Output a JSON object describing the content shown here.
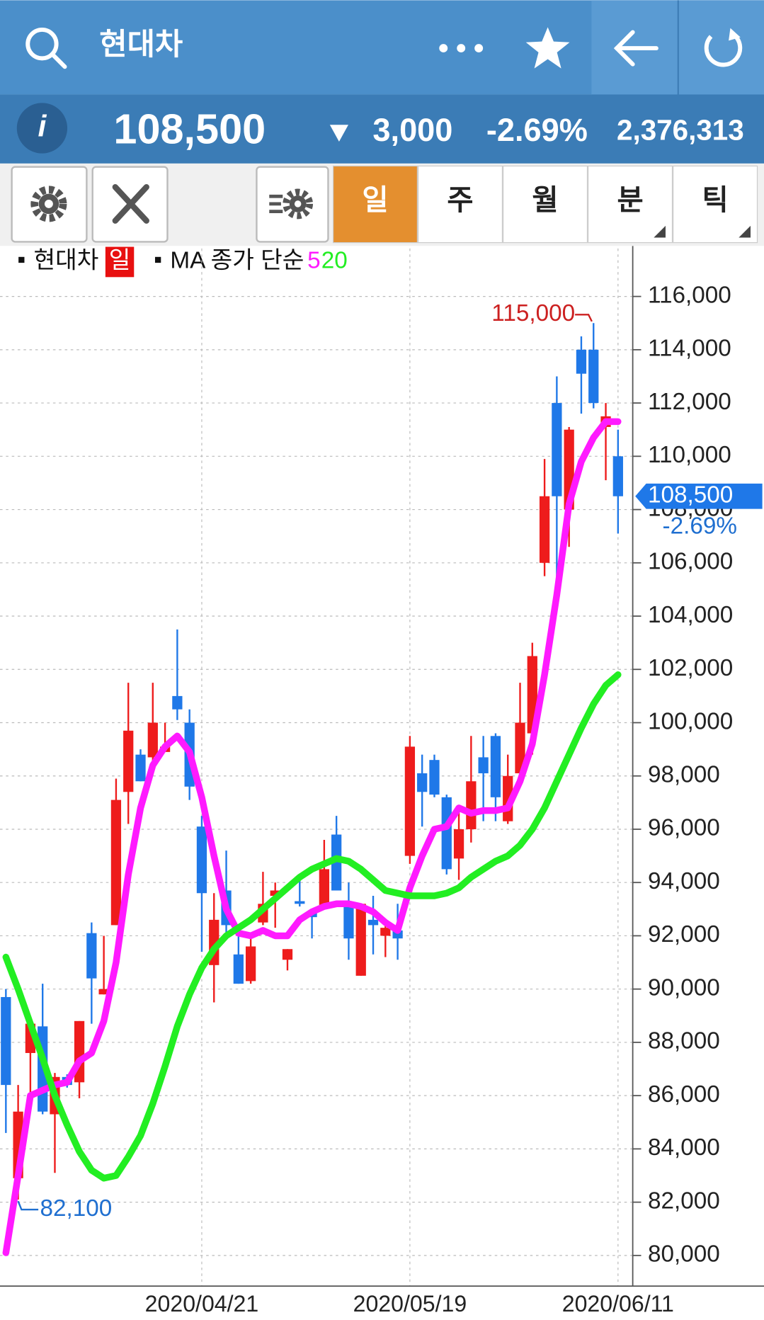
{
  "header": {
    "title": "현대차",
    "info_icon": "i",
    "price": "108,500",
    "change": "3,000",
    "change_pct": "-2.69%",
    "volume": "2,376,313"
  },
  "tabs": [
    "일",
    "주",
    "월",
    "분",
    "틱"
  ],
  "legend": {
    "stock": "현대차",
    "period": "일",
    "ma_label": "MA 종가 단순"
  },
  "chart_data": {
    "type": "candlestick",
    "x": [
      null,
      null,
      null,
      null,
      null,
      null,
      null,
      null,
      null,
      null,
      null,
      null,
      null,
      null,
      null,
      null,
      "2020/04/21",
      null,
      null,
      null,
      null,
      null,
      null,
      null,
      null,
      null,
      null,
      null,
      null,
      null,
      null,
      null,
      null,
      "2020/05/19",
      null,
      null,
      null,
      null,
      null,
      null,
      null,
      null,
      null,
      null,
      null,
      null,
      null,
      null,
      null,
      null,
      "2020/06/11"
    ],
    "open": [
      89700,
      82900,
      87600,
      88600,
      85300,
      86700,
      86500,
      92100,
      89800,
      92400,
      97400,
      98800,
      98700,
      98900,
      101000,
      100000,
      96100,
      90900,
      93700,
      91300,
      90300,
      92500,
      93500,
      91100,
      93300,
      92900,
      93100,
      95800,
      93200,
      90500,
      92600,
      92000,
      92200,
      95000,
      98100,
      98600,
      97200,
      94900,
      96000,
      98700,
      99500,
      96300,
      98100,
      99600,
      106000,
      112000,
      108000,
      114000,
      114000,
      111100,
      110000
    ],
    "high": [
      90000,
      86400,
      88700,
      90200,
      86850,
      86800,
      88800,
      92500,
      92000,
      97900,
      101500,
      99000,
      101500,
      100000,
      103500,
      100500,
      96500,
      93600,
      95200,
      92200,
      91900,
      94400,
      94000,
      91500,
      94300,
      92900,
      95600,
      96500,
      94000,
      93200,
      93500,
      92500,
      93200,
      99500,
      98800,
      98800,
      97300,
      96800,
      99500,
      99500,
      99600,
      98800,
      101500,
      103000,
      109900,
      113000,
      111100,
      114500,
      115000,
      112000,
      111000
    ],
    "low": [
      84600,
      82100,
      86000,
      85300,
      83100,
      86300,
      85900,
      88700,
      89800,
      92400,
      96200,
      97800,
      98400,
      98900,
      100100,
      97100,
      91400,
      89500,
      92000,
      90200,
      90200,
      92400,
      92300,
      90700,
      93100,
      91900,
      93100,
      93700,
      91100,
      90500,
      91300,
      91200,
      91100,
      94700,
      96100,
      97200,
      94300,
      94100,
      95500,
      96300,
      96300,
      96200,
      97600,
      98800,
      105500,
      105000,
      106600,
      111600,
      111800,
      109100,
      107100
    ],
    "close": [
      86400,
      85400,
      88700,
      85400,
      86700,
      86400,
      88800,
      90400,
      90000,
      97100,
      99700,
      97800,
      100000,
      99100,
      100500,
      97600,
      93600,
      92600,
      92400,
      90200,
      91600,
      93200,
      93700,
      91500,
      93200,
      92700,
      94500,
      93700,
      91900,
      93200,
      92400,
      92300,
      91900,
      99100,
      97400,
      97300,
      94500,
      96000,
      97800,
      98100,
      97200,
      98000,
      100000,
      102500,
      108500,
      108500,
      111000,
      113100,
      112000,
      111500,
      108500
    ],
    "up_color": "#ee1c1c",
    "down_color": "#1f78e8",
    "ma": [
      {
        "name": "5",
        "color": "#ff1aff",
        "values": [
          80100,
          83000,
          86000,
          86200,
          86400,
          86500,
          87300,
          87600,
          88800,
          91000,
          94300,
          96800,
          98400,
          99100,
          99500,
          98900,
          97200,
          95000,
          93000,
          92100,
          92000,
          92200,
          92000,
          92000,
          92600,
          92900,
          93100,
          93200,
          93200,
          93100,
          92900,
          92500,
          92200,
          93800,
          95000,
          96000,
          96100,
          96800,
          96600,
          96700,
          96700,
          96800,
          97800,
          99200,
          101800,
          104800,
          108200,
          109800,
          110700,
          111300,
          111300
        ]
      },
      {
        "name": "20",
        "color": "#22ee22",
        "values": [
          91200,
          90000,
          88700,
          87400,
          86000,
          84900,
          83900,
          83200,
          82900,
          83000,
          83700,
          84500,
          85700,
          87100,
          88600,
          89800,
          90800,
          91500,
          92000,
          92300,
          92600,
          93000,
          93400,
          93800,
          94200,
          94500,
          94700,
          94900,
          94800,
          94500,
          94100,
          93700,
          93600,
          93500,
          93500,
          93500,
          93600,
          93800,
          94200,
          94500,
          94800,
          95000,
          95400,
          96000,
          96800,
          97800,
          98800,
          99800,
          100700,
          101400,
          101800
        ]
      }
    ],
    "ylim": [
      78850,
      117800
    ],
    "yticks": [
      {
        "value": 80000,
        "label": "80,000"
      },
      {
        "value": 82000,
        "label": "82,000"
      },
      {
        "value": 84000,
        "label": "84,000"
      },
      {
        "value": 86000,
        "label": "86,000"
      },
      {
        "value": 88000,
        "label": "88,000"
      },
      {
        "value": 90000,
        "label": "90,000"
      },
      {
        "value": 92000,
        "label": "92,000"
      },
      {
        "value": 94000,
        "label": "94,000"
      },
      {
        "value": 96000,
        "label": "96,000"
      },
      {
        "value": 98000,
        "label": "98,000"
      },
      {
        "value": 100000,
        "label": "100,000"
      },
      {
        "value": 102000,
        "label": "102,000"
      },
      {
        "value": 104000,
        "label": "104,000"
      },
      {
        "value": 106000,
        "label": "106,000"
      },
      {
        "value": 108000,
        "label": "108,000"
      },
      {
        "value": 110000,
        "label": "110,000"
      },
      {
        "value": 112000,
        "label": "112,000"
      },
      {
        "value": 114000,
        "label": "114,000"
      },
      {
        "value": 116000,
        "label": "116,000"
      }
    ],
    "grid": true,
    "max_label": {
      "value": 115000,
      "label": "115,000"
    },
    "min_label": {
      "value": 82100,
      "label": "82,100"
    },
    "last_price": {
      "value": 108500,
      "label": "108,500",
      "change": "-2.69%"
    }
  }
}
